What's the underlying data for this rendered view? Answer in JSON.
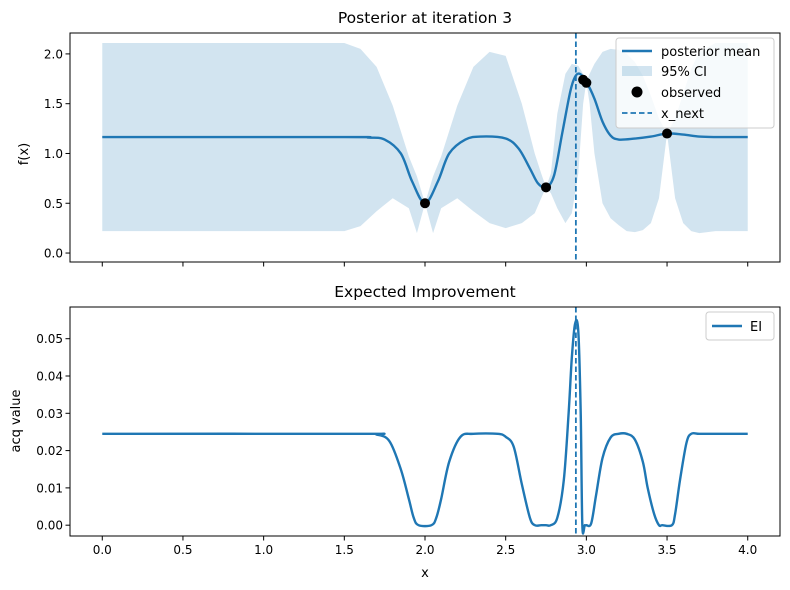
{
  "chart_data": [
    {
      "type": "line",
      "title": "Posterior at iteration 3",
      "xlabel": "",
      "ylabel": "f(x)",
      "xlim": [
        -0.2,
        4.2
      ],
      "ylim": [
        -0.09,
        2.21
      ],
      "xticks": [
        0.0,
        0.5,
        1.0,
        1.5,
        2.0,
        2.5,
        3.0,
        3.5,
        4.0
      ],
      "xtick_labels_visible": false,
      "yticks": [
        0.0,
        0.5,
        1.0,
        1.5,
        2.0
      ],
      "ytick_labels": [
        "0.0",
        "0.5",
        "1.0",
        "1.5",
        "2.0"
      ],
      "legend": {
        "placement": "top-right",
        "entries": [
          "posterior mean",
          "95% CI",
          "observed",
          "x_next"
        ]
      },
      "colors": {
        "mean": "#1f77b4",
        "ci": "#1f77b4",
        "observed": "#000000",
        "x_next": "#1f77b4"
      },
      "series": [
        {
          "name": "posterior mean",
          "x": [
            0.0,
            1.5,
            1.65,
            1.75,
            1.85,
            1.92,
            2.0,
            2.08,
            2.15,
            2.25,
            2.35,
            2.5,
            2.58,
            2.65,
            2.7,
            2.75,
            2.8,
            2.85,
            2.9,
            2.93,
            2.96,
            3.0,
            3.05,
            3.1,
            3.15,
            3.2,
            3.3,
            3.4,
            3.5,
            3.6,
            3.7,
            3.8,
            4.0
          ],
          "y": [
            1.165,
            1.165,
            1.16,
            1.14,
            1.0,
            0.72,
            0.5,
            0.72,
            1.0,
            1.14,
            1.17,
            1.15,
            1.05,
            0.85,
            0.7,
            0.66,
            0.78,
            1.2,
            1.62,
            1.77,
            1.8,
            1.72,
            1.55,
            1.32,
            1.18,
            1.14,
            1.15,
            1.17,
            1.2,
            1.19,
            1.17,
            1.165,
            1.165
          ]
        },
        {
          "name": "95% CI",
          "x": [
            0.0,
            1.5,
            1.6,
            1.7,
            1.8,
            1.9,
            1.95,
            2.0,
            2.05,
            2.1,
            2.2,
            2.3,
            2.4,
            2.5,
            2.6,
            2.68,
            2.72,
            2.75,
            2.78,
            2.82,
            2.87,
            2.91,
            2.95,
            2.98,
            3.0,
            3.02,
            3.05,
            3.1,
            3.15,
            3.2,
            3.25,
            3.3,
            3.35,
            3.4,
            3.45,
            3.5,
            3.55,
            3.6,
            3.65,
            3.7,
            3.8,
            4.0
          ],
          "upper": [
            2.11,
            2.11,
            2.05,
            1.87,
            1.48,
            0.97,
            0.77,
            0.5,
            0.77,
            0.97,
            1.48,
            1.87,
            2.02,
            1.98,
            1.5,
            1.0,
            0.8,
            0.66,
            0.8,
            1.4,
            1.8,
            1.9,
            1.88,
            1.8,
            1.72,
            1.8,
            1.9,
            2.02,
            2.05,
            2.04,
            2.0,
            1.92,
            1.78,
            1.58,
            1.35,
            1.2,
            1.35,
            1.6,
            1.85,
            2.02,
            2.11,
            2.11
          ],
          "lower": [
            0.22,
            0.22,
            0.27,
            0.42,
            0.55,
            0.45,
            0.2,
            0.5,
            0.2,
            0.45,
            0.55,
            0.42,
            0.3,
            0.25,
            0.3,
            0.4,
            0.55,
            0.66,
            0.6,
            0.45,
            0.3,
            0.4,
            0.8,
            1.5,
            1.72,
            1.5,
            1.0,
            0.5,
            0.35,
            0.28,
            0.22,
            0.21,
            0.23,
            0.3,
            0.55,
            1.2,
            0.55,
            0.3,
            0.22,
            0.2,
            0.22,
            0.22
          ]
        },
        {
          "name": "observed",
          "type": "scatter",
          "x": [
            2.0,
            2.75,
            2.98,
            3.0,
            3.5
          ],
          "y": [
            0.5,
            0.66,
            1.74,
            1.71,
            1.2
          ]
        },
        {
          "name": "x_next",
          "type": "vline",
          "x": 2.935
        }
      ]
    },
    {
      "type": "line",
      "title": "Expected Improvement",
      "xlabel": "x",
      "ylabel": "acq value",
      "xlim": [
        -0.2,
        4.2
      ],
      "ylim": [
        -0.0029,
        0.0585
      ],
      "xticks": [
        0.0,
        0.5,
        1.0,
        1.5,
        2.0,
        2.5,
        3.0,
        3.5,
        4.0
      ],
      "xtick_labels": [
        "0.0",
        "0.5",
        "1.0",
        "1.5",
        "2.0",
        "2.5",
        "3.0",
        "3.5",
        "4.0"
      ],
      "yticks": [
        0.0,
        0.01,
        0.02,
        0.03,
        0.04,
        0.05
      ],
      "ytick_labels": [
        "0.00",
        "0.01",
        "0.02",
        "0.03",
        "0.04",
        "0.05"
      ],
      "legend": {
        "placement": "top-right",
        "entries": [
          "EI"
        ]
      },
      "colors": {
        "ei": "#1f77b4",
        "x_next": "#1f77b4"
      },
      "series": [
        {
          "name": "EI",
          "x": [
            0.0,
            1.6,
            1.7,
            1.78,
            1.85,
            1.9,
            1.93,
            1.96,
            2.04,
            2.07,
            2.1,
            2.15,
            2.22,
            2.3,
            2.45,
            2.5,
            2.55,
            2.6,
            2.65,
            2.68,
            2.72,
            2.75,
            2.78,
            2.82,
            2.86,
            2.89,
            2.91,
            2.93,
            2.95,
            2.965,
            2.975,
            2.99,
            3.0,
            3.03,
            3.06,
            3.1,
            3.15,
            3.2,
            3.25,
            3.3,
            3.35,
            3.38,
            3.42,
            3.45,
            3.47,
            3.53,
            3.55,
            3.58,
            3.62,
            3.65,
            3.7,
            3.8,
            4.0
          ],
          "y": [
            0.0245,
            0.0245,
            0.0243,
            0.0225,
            0.015,
            0.007,
            0.002,
            0.0,
            0.0,
            0.002,
            0.007,
            0.017,
            0.0237,
            0.0245,
            0.0245,
            0.0237,
            0.021,
            0.011,
            0.002,
            0.0,
            0.0,
            0.0,
            0.0,
            0.002,
            0.012,
            0.03,
            0.045,
            0.054,
            0.052,
            0.03,
            0.0,
            0.0,
            0.0,
            0.0005,
            0.008,
            0.018,
            0.0235,
            0.0245,
            0.0245,
            0.023,
            0.017,
            0.01,
            0.003,
            0.0,
            0.0,
            0.0,
            0.003,
            0.012,
            0.022,
            0.0245,
            0.0245,
            0.0245,
            0.0245
          ]
        },
        {
          "name": "x_next",
          "type": "vline",
          "x": 2.935
        }
      ]
    }
  ]
}
